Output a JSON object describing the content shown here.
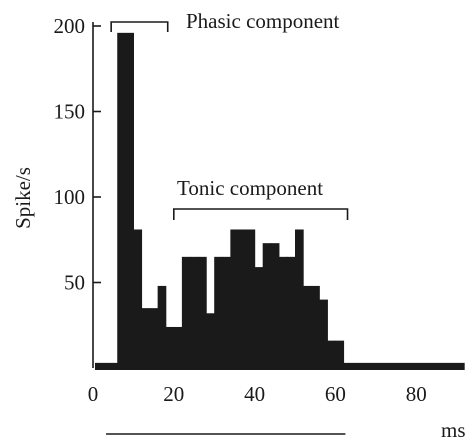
{
  "chart_data": {
    "type": "bar",
    "title": "",
    "xlabel": "ms",
    "ylabel": "Spike/s",
    "xlim": [
      0,
      92
    ],
    "ylim": [
      0,
      200
    ],
    "x_ticks": [
      0,
      20,
      40,
      60,
      80
    ],
    "y_ticks": [
      50,
      100,
      150,
      200
    ],
    "bin_width_ms": 2,
    "bins": [
      {
        "x": 6,
        "value": 196
      },
      {
        "x": 10,
        "value": 81
      },
      {
        "x": 12,
        "value": 35
      },
      {
        "x": 14,
        "value": 35
      },
      {
        "x": 16,
        "value": 48
      },
      {
        "x": 18,
        "value": 24
      },
      {
        "x": 20,
        "value": 24
      },
      {
        "x": 22,
        "value": 65
      },
      {
        "x": 24,
        "value": 65
      },
      {
        "x": 26,
        "value": 65
      },
      {
        "x": 28,
        "value": 32
      },
      {
        "x": 30,
        "value": 65
      },
      {
        "x": 32,
        "value": 65
      },
      {
        "x": 34,
        "value": 81
      },
      {
        "x": 36,
        "value": 81
      },
      {
        "x": 38,
        "value": 81
      },
      {
        "x": 40,
        "value": 59
      },
      {
        "x": 42,
        "value": 73
      },
      {
        "x": 44,
        "value": 73
      },
      {
        "x": 46,
        "value": 65
      },
      {
        "x": 48,
        "value": 65
      },
      {
        "x": 50,
        "value": 81
      },
      {
        "x": 52,
        "value": 48
      },
      {
        "x": 54,
        "value": 48
      },
      {
        "x": 56,
        "value": 40
      },
      {
        "x": 58,
        "value": 16
      },
      {
        "x": 60,
        "value": 16
      }
    ],
    "bin_widths_note": "",
    "baseline": {
      "value": 1.5,
      "from": 0,
      "to": 92
    },
    "annotations": [
      {
        "label": "Phasic component",
        "from": 4,
        "to": 18
      },
      {
        "label": "Tonic component",
        "from": 20,
        "to": 63
      }
    ],
    "stimulus_bar": {
      "from": 2,
      "to": 60
    },
    "color": "#1a1a1a"
  }
}
